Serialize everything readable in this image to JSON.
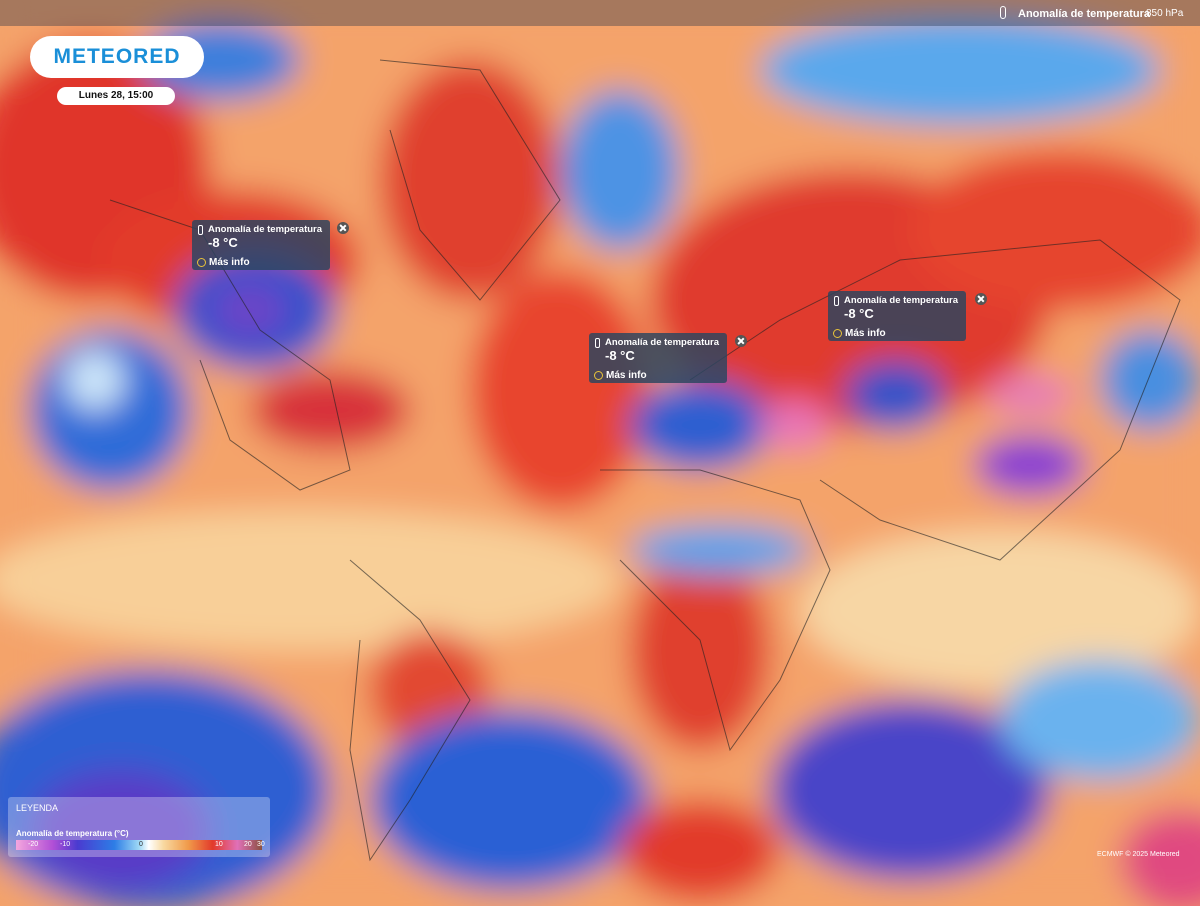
{
  "header": {
    "logo": "METEORED",
    "datetime": "Lunes 28, 15:00",
    "layer": "Anomalía de temperatura",
    "level": "850 hPa"
  },
  "popups": [
    {
      "title": "Anomalía de temperatura",
      "value": "-8 °C",
      "link": "Más info"
    },
    {
      "title": "Anomalía de temperatura",
      "value": "-8 °C",
      "link": "Más info"
    },
    {
      "title": "Anomalía de temperatura",
      "value": "-8 °C",
      "link": "Más info"
    }
  ],
  "legend": {
    "title": "LEYENDA",
    "subtitle": "Anomalía de temperatura (°C)",
    "ticks": [
      "-20",
      "-10",
      "0",
      "10",
      "20",
      "30"
    ]
  },
  "credit": "ECMWF © 2025 Meteored"
}
